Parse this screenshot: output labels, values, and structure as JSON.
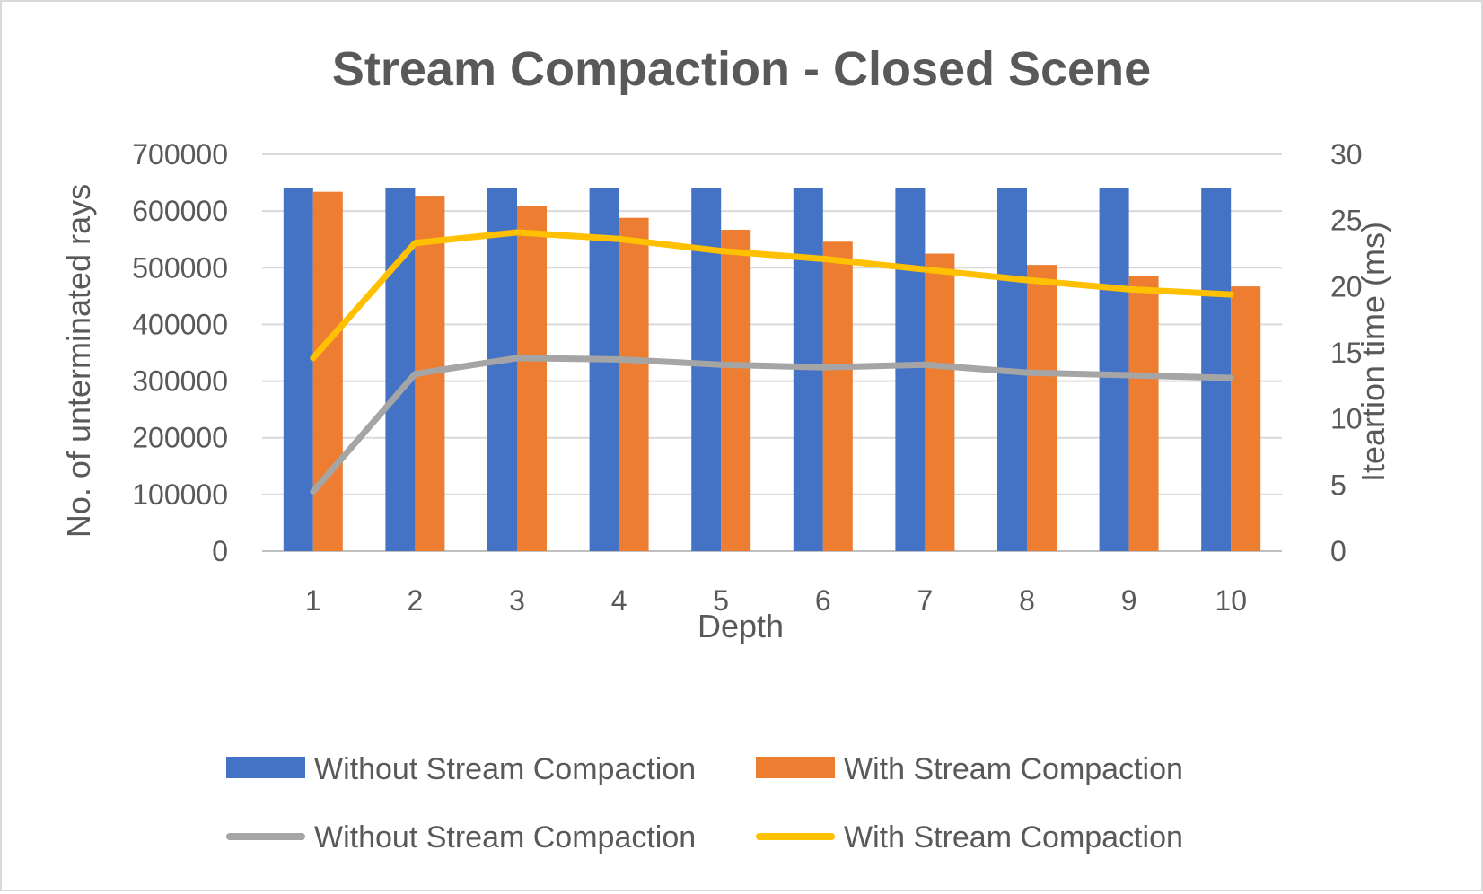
{
  "chart_data": {
    "type": "bar",
    "title": "Stream Compaction - Closed Scene",
    "xlabel": "Depth",
    "ylabel": "No. of unterminated rays",
    "y2label": "Iteartion time (ms)",
    "categories": [
      "1",
      "2",
      "3",
      "4",
      "5",
      "6",
      "7",
      "8",
      "9",
      "10"
    ],
    "ylim": [
      0,
      700000
    ],
    "yticks": [
      0,
      100000,
      200000,
      300000,
      400000,
      500000,
      600000,
      700000
    ],
    "y2lim": [
      0,
      30
    ],
    "y2ticks": [
      0,
      5,
      10,
      15,
      20,
      25,
      30
    ],
    "grid": true,
    "legend_position": "bottom",
    "bar_series": [
      {
        "name": "Without Stream Compaction",
        "color": "#4472c4",
        "values": [
          640000,
          640000,
          640000,
          640000,
          640000,
          640000,
          640000,
          640000,
          640000,
          640000
        ]
      },
      {
        "name": "With Stream Compaction",
        "color": "#ed7d31",
        "values": [
          634000,
          627000,
          609000,
          588000,
          567000,
          546000,
          525000,
          505000,
          486000,
          467000
        ]
      }
    ],
    "line_series": [
      {
        "name": "Without Stream Compaction",
        "color": "#a5a5a5",
        "axis": "secondary",
        "values": [
          4.5,
          13.4,
          14.6,
          14.5,
          14.1,
          13.9,
          14.1,
          13.5,
          13.3,
          13.1
        ]
      },
      {
        "name": "With Stream Compaction",
        "color": "#ffc000",
        "axis": "secondary",
        "values": [
          14.6,
          23.3,
          24.1,
          23.6,
          22.7,
          22.1,
          21.3,
          20.5,
          19.8,
          19.4
        ]
      }
    ]
  }
}
